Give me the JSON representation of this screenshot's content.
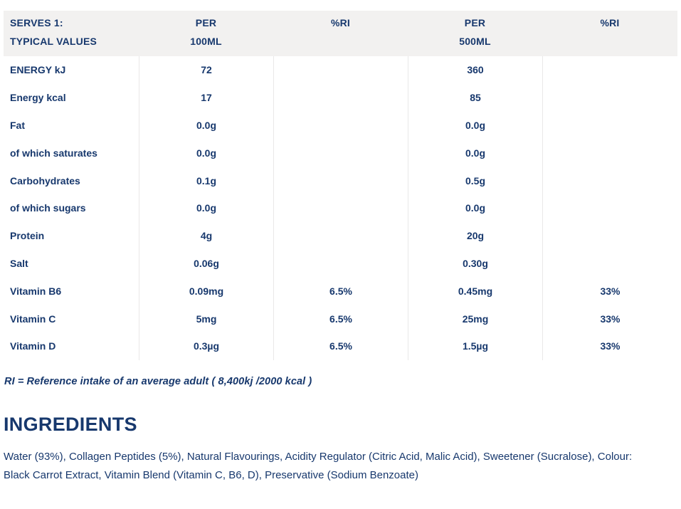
{
  "colors": {
    "text_navy": "#17386d",
    "header_bg": "#f2f1f0",
    "divider": "#e9e8e8",
    "page_bg": "#ffffff"
  },
  "nutrition_table": {
    "header": {
      "serves_line": "SERVES 1:",
      "typical_values_line": "TYPICAL VALUES",
      "per_100_line1": "PER",
      "per_100_line2": "100ML",
      "ri_100": "%RI",
      "per_500_line1": "PER",
      "per_500_line2": "500ML",
      "ri_500": "%RI"
    },
    "rows": [
      {
        "label": "ENERGY kJ",
        "per100": "72",
        "ri100": "",
        "per500": "360",
        "ri500": ""
      },
      {
        "label": "Energy kcal",
        "per100": "17",
        "ri100": "",
        "per500": "85",
        "ri500": ""
      },
      {
        "label": "Fat",
        "per100": "0.0g",
        "ri100": "",
        "per500": "0.0g",
        "ri500": ""
      },
      {
        "label": "of which saturates",
        "per100": "0.0g",
        "ri100": "",
        "per500": "0.0g",
        "ri500": ""
      },
      {
        "label": "Carbohydrates",
        "per100": "0.1g",
        "ri100": "",
        "per500": "0.5g",
        "ri500": ""
      },
      {
        "label": "of which sugars",
        "per100": "0.0g",
        "ri100": "",
        "per500": "0.0g",
        "ri500": ""
      },
      {
        "label": "Protein",
        "per100": "4g",
        "ri100": "",
        "per500": "20g",
        "ri500": ""
      },
      {
        "label": "Salt",
        "per100": "0.06g",
        "ri100": "",
        "per500": "0.30g",
        "ri500": ""
      },
      {
        "label": "Vitamin B6",
        "per100": "0.09mg",
        "ri100": "6.5%",
        "per500": "0.45mg",
        "ri500": "33%"
      },
      {
        "label": "Vitamin C",
        "per100": "5mg",
        "ri100": "6.5%",
        "per500": "25mg",
        "ri500": "33%"
      },
      {
        "label": "Vitamin D",
        "per100": "0.3µg",
        "ri100": "6.5%",
        "per500": "1.5µg",
        "ri500": "33%"
      }
    ]
  },
  "footnote": "RI = Reference intake of an average adult ( 8,400kj /2000 kcal )",
  "ingredients": {
    "heading": "INGREDIENTS",
    "text": "Water (93%), Collagen Peptides (5%), Natural Flavourings, Acidity Regulator (Citric Acid, Malic Acid), Sweetener (Sucralose), Colour: Black Carrot Extract, Vitamin Blend (Vitamin C, B6, D), Preservative (Sodium Benzoate)"
  }
}
